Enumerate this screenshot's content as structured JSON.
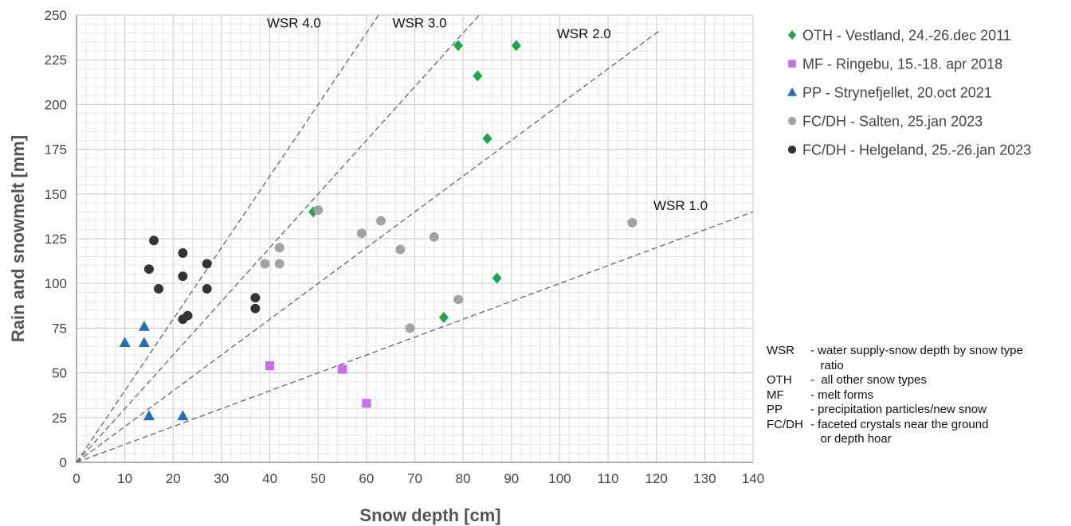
{
  "chart_data": {
    "type": "scatter",
    "xlabel": "Snow depth [cm]",
    "ylabel": "Rain and snowmelt [mm]",
    "xlim": [
      0,
      140
    ],
    "ylim": [
      0,
      250
    ],
    "x_ticks": [
      "0",
      "10",
      "20",
      "30",
      "40",
      "50",
      "60",
      "70",
      "80",
      "90",
      "100",
      "110",
      "120",
      "130",
      "140"
    ],
    "y_ticks": [
      "0",
      "25",
      "50",
      "75",
      "100",
      "125",
      "150",
      "175",
      "200",
      "225",
      "250"
    ],
    "grid": true,
    "legend_position": "right",
    "series": [
      {
        "name": "OTH - Vestland, 24.-26.dec 2011",
        "marker": "diamond",
        "color": "#1aa84a",
        "points": [
          [
            79,
            233
          ],
          [
            91,
            233
          ],
          [
            83,
            216
          ],
          [
            85,
            181
          ],
          [
            49,
            140
          ],
          [
            87,
            103
          ],
          [
            76,
            81
          ]
        ]
      },
      {
        "name": "MF - Ringebu, 15.-18. apr 2018",
        "marker": "square",
        "color": "#c86ff0",
        "points": [
          [
            40,
            54
          ],
          [
            55,
            52
          ],
          [
            60,
            33
          ]
        ]
      },
      {
        "name": "PP - Strynefjellet, 20.oct 2021",
        "marker": "triangle",
        "color": "#1f6fbf",
        "points": [
          [
            14,
            76
          ],
          [
            10,
            67
          ],
          [
            14,
            67
          ],
          [
            15,
            26
          ],
          [
            22,
            26
          ]
        ]
      },
      {
        "name": "FC/DH - Salten, 25.jan 2023",
        "marker": "circle",
        "color": "#a3a3a3",
        "points": [
          [
            115,
            134
          ],
          [
            50,
            141
          ],
          [
            63,
            135
          ],
          [
            59,
            128
          ],
          [
            74,
            126
          ],
          [
            39,
            111
          ],
          [
            42,
            120
          ],
          [
            42,
            111
          ],
          [
            67,
            119
          ],
          [
            79,
            91
          ],
          [
            69,
            75
          ]
        ]
      },
      {
        "name": "FC/DH - Helgeland, 25.-26.jan 2023",
        "marker": "circle",
        "color": "#333333",
        "points": [
          [
            16,
            124
          ],
          [
            15,
            108
          ],
          [
            17,
            97
          ],
          [
            22,
            117
          ],
          [
            22,
            104
          ],
          [
            27,
            111
          ],
          [
            27,
            97
          ],
          [
            22,
            80
          ],
          [
            23,
            82
          ],
          [
            37,
            92
          ],
          [
            37,
            86
          ]
        ]
      }
    ],
    "ratio_lines": [
      {
        "label": "WSR 4.0",
        "ratio": 4.0
      },
      {
        "label": "WSR 3.0",
        "ratio": 3.0
      },
      {
        "label": "WSR 2.0",
        "ratio": 2.0
      },
      {
        "label": "WSR 1.0",
        "ratio": 1.0
      }
    ]
  },
  "abbreviations": [
    {
      "key": "WSR",
      "definition": "- water supply-snow depth by snow type"
    },
    {
      "key": "",
      "definition": "   ratio"
    },
    {
      "key": "OTH",
      "definition": "-  all other snow types"
    },
    {
      "key": "MF",
      "definition": "- melt forms"
    },
    {
      "key": "PP",
      "definition": "- precipitation particles/new snow"
    },
    {
      "key": "FC/DH",
      "definition": "- faceted crystals near the ground"
    },
    {
      "key": "",
      "definition": "   or depth hoar"
    }
  ]
}
